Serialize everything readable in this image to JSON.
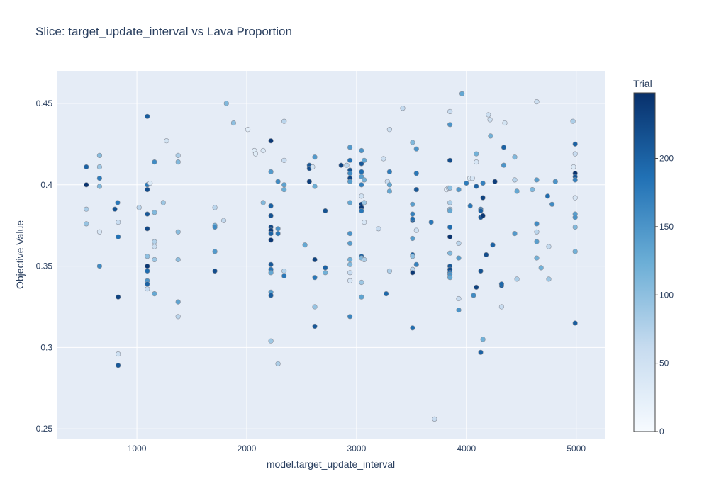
{
  "chart_data": {
    "type": "scatter",
    "title": "Slice: target_update_interval vs Lava Proportion",
    "xlabel": "model.target_update_interval",
    "ylabel": "Objective Value",
    "xlim": [
      270,
      5260
    ],
    "ylim": [
      0.244,
      0.47
    ],
    "x_ticks": [
      1000,
      2000,
      3000,
      4000,
      5000
    ],
    "x_tick_labels": [
      "1000",
      "2000",
      "3000",
      "4000",
      "5000"
    ],
    "y_ticks": [
      0.25,
      0.3,
      0.35,
      0.4,
      0.45
    ],
    "y_tick_labels": [
      "0.25",
      "0.3",
      "0.35",
      "0.4",
      "0.45"
    ],
    "grid": true,
    "colorbar": {
      "title": "Trial",
      "range": [
        0,
        248
      ],
      "ticks": [
        0,
        50,
        100,
        150,
        200
      ],
      "tick_labels": [
        "0",
        "50",
        "100",
        "150",
        "200"
      ],
      "colors": [
        "#f7fbff",
        "#c6dbef",
        "#6baed6",
        "#2171b5",
        "#08306b"
      ]
    },
    "points": [
      {
        "x": 540,
        "y": 0.4,
        "trial": 245
      },
      {
        "x": 540,
        "y": 0.411,
        "trial": 200
      },
      {
        "x": 540,
        "y": 0.385,
        "trial": 80
      },
      {
        "x": 540,
        "y": 0.376,
        "trial": 95
      },
      {
        "x": 660,
        "y": 0.418,
        "trial": 105
      },
      {
        "x": 660,
        "y": 0.411,
        "trial": 90
      },
      {
        "x": 660,
        "y": 0.404,
        "trial": 175
      },
      {
        "x": 660,
        "y": 0.399,
        "trial": 110
      },
      {
        "x": 660,
        "y": 0.371,
        "trial": 40
      },
      {
        "x": 660,
        "y": 0.35,
        "trial": 160
      },
      {
        "x": 800,
        "y": 0.385,
        "trial": 215
      },
      {
        "x": 825,
        "y": 0.389,
        "trial": 180
      },
      {
        "x": 830,
        "y": 0.377,
        "trial": 60
      },
      {
        "x": 830,
        "y": 0.368,
        "trial": 185
      },
      {
        "x": 830,
        "y": 0.331,
        "trial": 230
      },
      {
        "x": 830,
        "y": 0.296,
        "trial": 55
      },
      {
        "x": 830,
        "y": 0.289,
        "trial": 210
      },
      {
        "x": 1020,
        "y": 0.386,
        "trial": 70
      },
      {
        "x": 1095,
        "y": 0.442,
        "trial": 205
      },
      {
        "x": 1095,
        "y": 0.4,
        "trial": 175
      },
      {
        "x": 1095,
        "y": 0.397,
        "trial": 220
      },
      {
        "x": 1095,
        "y": 0.382,
        "trial": 210
      },
      {
        "x": 1095,
        "y": 0.373,
        "trial": 225
      },
      {
        "x": 1095,
        "y": 0.356,
        "trial": 100
      },
      {
        "x": 1095,
        "y": 0.35,
        "trial": 240
      },
      {
        "x": 1095,
        "y": 0.347,
        "trial": 190
      },
      {
        "x": 1095,
        "y": 0.341,
        "trial": 150
      },
      {
        "x": 1095,
        "y": 0.339,
        "trial": 200
      },
      {
        "x": 1095,
        "y": 0.336,
        "trial": 60
      },
      {
        "x": 1120,
        "y": 0.401,
        "trial": 35
      },
      {
        "x": 1160,
        "y": 0.414,
        "trial": 160
      },
      {
        "x": 1160,
        "y": 0.383,
        "trial": 110
      },
      {
        "x": 1160,
        "y": 0.365,
        "trial": 75
      },
      {
        "x": 1160,
        "y": 0.362,
        "trial": 55
      },
      {
        "x": 1160,
        "y": 0.354,
        "trial": 90
      },
      {
        "x": 1160,
        "y": 0.333,
        "trial": 130
      },
      {
        "x": 1240,
        "y": 0.389,
        "trial": 90
      },
      {
        "x": 1270,
        "y": 0.427,
        "trial": 45
      },
      {
        "x": 1375,
        "y": 0.418,
        "trial": 80
      },
      {
        "x": 1375,
        "y": 0.414,
        "trial": 110
      },
      {
        "x": 1375,
        "y": 0.371,
        "trial": 105
      },
      {
        "x": 1375,
        "y": 0.354,
        "trial": 100
      },
      {
        "x": 1375,
        "y": 0.328,
        "trial": 135
      },
      {
        "x": 1375,
        "y": 0.319,
        "trial": 70
      },
      {
        "x": 1710,
        "y": 0.386,
        "trial": 70
      },
      {
        "x": 1710,
        "y": 0.375,
        "trial": 120
      },
      {
        "x": 1710,
        "y": 0.374,
        "trial": 160
      },
      {
        "x": 1710,
        "y": 0.359,
        "trial": 145
      },
      {
        "x": 1710,
        "y": 0.347,
        "trial": 220
      },
      {
        "x": 1790,
        "y": 0.378,
        "trial": 65
      },
      {
        "x": 1815,
        "y": 0.45,
        "trial": 110
      },
      {
        "x": 1880,
        "y": 0.438,
        "trial": 100
      },
      {
        "x": 2010,
        "y": 0.434,
        "trial": 25
      },
      {
        "x": 2070,
        "y": 0.421,
        "trial": 30
      },
      {
        "x": 2080,
        "y": 0.419,
        "trial": 30
      },
      {
        "x": 2150,
        "y": 0.421,
        "trial": 35
      },
      {
        "x": 2150,
        "y": 0.389,
        "trial": 110
      },
      {
        "x": 2220,
        "y": 0.427,
        "trial": 240
      },
      {
        "x": 2220,
        "y": 0.408,
        "trial": 145
      },
      {
        "x": 2220,
        "y": 0.387,
        "trial": 200
      },
      {
        "x": 2220,
        "y": 0.381,
        "trial": 215
      },
      {
        "x": 2220,
        "y": 0.374,
        "trial": 225
      },
      {
        "x": 2220,
        "y": 0.372,
        "trial": 235
      },
      {
        "x": 2220,
        "y": 0.37,
        "trial": 200
      },
      {
        "x": 2220,
        "y": 0.366,
        "trial": 240
      },
      {
        "x": 2220,
        "y": 0.351,
        "trial": 210
      },
      {
        "x": 2220,
        "y": 0.348,
        "trial": 180
      },
      {
        "x": 2220,
        "y": 0.346,
        "trial": 130
      },
      {
        "x": 2220,
        "y": 0.334,
        "trial": 140
      },
      {
        "x": 2220,
        "y": 0.332,
        "trial": 205
      },
      {
        "x": 2220,
        "y": 0.304,
        "trial": 90
      },
      {
        "x": 2285,
        "y": 0.402,
        "trial": 160
      },
      {
        "x": 2285,
        "y": 0.373,
        "trial": 150
      },
      {
        "x": 2285,
        "y": 0.37,
        "trial": 180
      },
      {
        "x": 2285,
        "y": 0.29,
        "trial": 80
      },
      {
        "x": 2340,
        "y": 0.439,
        "trial": 70
      },
      {
        "x": 2340,
        "y": 0.415,
        "trial": 60
      },
      {
        "x": 2340,
        "y": 0.4,
        "trial": 135
      },
      {
        "x": 2340,
        "y": 0.397,
        "trial": 125
      },
      {
        "x": 2340,
        "y": 0.347,
        "trial": 75
      },
      {
        "x": 2340,
        "y": 0.344,
        "trial": 180
      },
      {
        "x": 2530,
        "y": 0.363,
        "trial": 130
      },
      {
        "x": 2570,
        "y": 0.412,
        "trial": 210
      },
      {
        "x": 2570,
        "y": 0.41,
        "trial": 220
      },
      {
        "x": 2570,
        "y": 0.402,
        "trial": 235
      },
      {
        "x": 2600,
        "y": 0.411,
        "trial": 45
      },
      {
        "x": 2620,
        "y": 0.417,
        "trial": 145
      },
      {
        "x": 2620,
        "y": 0.399,
        "trial": 125
      },
      {
        "x": 2620,
        "y": 0.354,
        "trial": 230
      },
      {
        "x": 2620,
        "y": 0.343,
        "trial": 180
      },
      {
        "x": 2620,
        "y": 0.325,
        "trial": 95
      },
      {
        "x": 2620,
        "y": 0.313,
        "trial": 210
      },
      {
        "x": 2715,
        "y": 0.384,
        "trial": 215
      },
      {
        "x": 2715,
        "y": 0.349,
        "trial": 200
      },
      {
        "x": 2715,
        "y": 0.346,
        "trial": 120
      },
      {
        "x": 2860,
        "y": 0.412,
        "trial": 230
      },
      {
        "x": 2910,
        "y": 0.412,
        "trial": 70
      },
      {
        "x": 2940,
        "y": 0.423,
        "trial": 145
      },
      {
        "x": 2940,
        "y": 0.415,
        "trial": 185
      },
      {
        "x": 2940,
        "y": 0.409,
        "trial": 215
      },
      {
        "x": 2940,
        "y": 0.404,
        "trial": 225
      },
      {
        "x": 2940,
        "y": 0.407,
        "trial": 160
      },
      {
        "x": 2940,
        "y": 0.402,
        "trial": 140
      },
      {
        "x": 2940,
        "y": 0.389,
        "trial": 130
      },
      {
        "x": 2940,
        "y": 0.37,
        "trial": 150
      },
      {
        "x": 2940,
        "y": 0.364,
        "trial": 140
      },
      {
        "x": 2940,
        "y": 0.354,
        "trial": 120
      },
      {
        "x": 2940,
        "y": 0.351,
        "trial": 110
      },
      {
        "x": 2940,
        "y": 0.346,
        "trial": 60
      },
      {
        "x": 2940,
        "y": 0.341,
        "trial": 40
      },
      {
        "x": 2940,
        "y": 0.319,
        "trial": 165
      },
      {
        "x": 3045,
        "y": 0.421,
        "trial": 150
      },
      {
        "x": 3045,
        "y": 0.413,
        "trial": 210
      },
      {
        "x": 3045,
        "y": 0.408,
        "trial": 190
      },
      {
        "x": 3045,
        "y": 0.405,
        "trial": 140
      },
      {
        "x": 3045,
        "y": 0.4,
        "trial": 170
      },
      {
        "x": 3045,
        "y": 0.393,
        "trial": 50
      },
      {
        "x": 3045,
        "y": 0.388,
        "trial": 230
      },
      {
        "x": 3045,
        "y": 0.386,
        "trial": 240
      },
      {
        "x": 3045,
        "y": 0.384,
        "trial": 180
      },
      {
        "x": 3045,
        "y": 0.356,
        "trial": 200
      },
      {
        "x": 3045,
        "y": 0.355,
        "trial": 110
      },
      {
        "x": 3045,
        "y": 0.34,
        "trial": 90
      },
      {
        "x": 3045,
        "y": 0.331,
        "trial": 135
      },
      {
        "x": 3070,
        "y": 0.415,
        "trial": 130
      },
      {
        "x": 3070,
        "y": 0.403,
        "trial": 120
      },
      {
        "x": 3070,
        "y": 0.389,
        "trial": 90
      },
      {
        "x": 3070,
        "y": 0.377,
        "trial": 40
      },
      {
        "x": 3070,
        "y": 0.354,
        "trial": 80
      },
      {
        "x": 3200,
        "y": 0.373,
        "trial": 60
      },
      {
        "x": 3245,
        "y": 0.416,
        "trial": 55
      },
      {
        "x": 3270,
        "y": 0.333,
        "trial": 195
      },
      {
        "x": 3280,
        "y": 0.402,
        "trial": 60
      },
      {
        "x": 3300,
        "y": 0.434,
        "trial": 55
      },
      {
        "x": 3300,
        "y": 0.408,
        "trial": 175
      },
      {
        "x": 3300,
        "y": 0.4,
        "trial": 130
      },
      {
        "x": 3300,
        "y": 0.396,
        "trial": 130
      },
      {
        "x": 3300,
        "y": 0.347,
        "trial": 80
      },
      {
        "x": 3420,
        "y": 0.447,
        "trial": 65
      },
      {
        "x": 3510,
        "y": 0.426,
        "trial": 110
      },
      {
        "x": 3510,
        "y": 0.388,
        "trial": 140
      },
      {
        "x": 3510,
        "y": 0.382,
        "trial": 170
      },
      {
        "x": 3510,
        "y": 0.378,
        "trial": 210
      },
      {
        "x": 3510,
        "y": 0.379,
        "trial": 190
      },
      {
        "x": 3510,
        "y": 0.367,
        "trial": 140
      },
      {
        "x": 3510,
        "y": 0.357,
        "trial": 200
      },
      {
        "x": 3510,
        "y": 0.356,
        "trial": 100
      },
      {
        "x": 3510,
        "y": 0.348,
        "trial": 70
      },
      {
        "x": 3510,
        "y": 0.346,
        "trial": 240
      },
      {
        "x": 3510,
        "y": 0.312,
        "trial": 190
      },
      {
        "x": 3545,
        "y": 0.422,
        "trial": 150
      },
      {
        "x": 3545,
        "y": 0.407,
        "trial": 180
      },
      {
        "x": 3545,
        "y": 0.397,
        "trial": 210
      },
      {
        "x": 3545,
        "y": 0.372,
        "trial": 50
      },
      {
        "x": 3545,
        "y": 0.351,
        "trial": 170
      },
      {
        "x": 3680,
        "y": 0.377,
        "trial": 180
      },
      {
        "x": 3710,
        "y": 0.256,
        "trial": 60
      },
      {
        "x": 3820,
        "y": 0.397,
        "trial": 25
      },
      {
        "x": 3835,
        "y": 0.398,
        "trial": 50
      },
      {
        "x": 3850,
        "y": 0.445,
        "trial": 60
      },
      {
        "x": 3850,
        "y": 0.437,
        "trial": 150
      },
      {
        "x": 3850,
        "y": 0.415,
        "trial": 220
      },
      {
        "x": 3850,
        "y": 0.398,
        "trial": 100
      },
      {
        "x": 3850,
        "y": 0.389,
        "trial": 80
      },
      {
        "x": 3850,
        "y": 0.385,
        "trial": 90
      },
      {
        "x": 3850,
        "y": 0.384,
        "trial": 130
      },
      {
        "x": 3850,
        "y": 0.374,
        "trial": 190
      },
      {
        "x": 3850,
        "y": 0.368,
        "trial": 245
      },
      {
        "x": 3850,
        "y": 0.358,
        "trial": 110
      },
      {
        "x": 3850,
        "y": 0.35,
        "trial": 210
      },
      {
        "x": 3850,
        "y": 0.348,
        "trial": 220
      },
      {
        "x": 3850,
        "y": 0.346,
        "trial": 180
      },
      {
        "x": 3850,
        "y": 0.345,
        "trial": 150
      },
      {
        "x": 3850,
        "y": 0.343,
        "trial": 130
      },
      {
        "x": 3930,
        "y": 0.397,
        "trial": 145
      },
      {
        "x": 3930,
        "y": 0.364,
        "trial": 70
      },
      {
        "x": 3930,
        "y": 0.355,
        "trial": 140
      },
      {
        "x": 3930,
        "y": 0.33,
        "trial": 60
      },
      {
        "x": 3930,
        "y": 0.323,
        "trial": 150
      },
      {
        "x": 3960,
        "y": 0.456,
        "trial": 130
      },
      {
        "x": 4000,
        "y": 0.401,
        "trial": 175
      },
      {
        "x": 4030,
        "y": 0.404,
        "trial": 30
      },
      {
        "x": 4035,
        "y": 0.387,
        "trial": 180
      },
      {
        "x": 4055,
        "y": 0.404,
        "trial": 40
      },
      {
        "x": 4065,
        "y": 0.332,
        "trial": 160
      },
      {
        "x": 4090,
        "y": 0.419,
        "trial": 120
      },
      {
        "x": 4090,
        "y": 0.414,
        "trial": 40
      },
      {
        "x": 4090,
        "y": 0.399,
        "trial": 200
      },
      {
        "x": 4090,
        "y": 0.337,
        "trial": 230
      },
      {
        "x": 4130,
        "y": 0.385,
        "trial": 180
      },
      {
        "x": 4130,
        "y": 0.384,
        "trial": 200
      },
      {
        "x": 4130,
        "y": 0.38,
        "trial": 210
      },
      {
        "x": 4130,
        "y": 0.347,
        "trial": 215
      },
      {
        "x": 4130,
        "y": 0.297,
        "trial": 200
      },
      {
        "x": 4150,
        "y": 0.401,
        "trial": 170
      },
      {
        "x": 4150,
        "y": 0.392,
        "trial": 230
      },
      {
        "x": 4150,
        "y": 0.381,
        "trial": 240
      },
      {
        "x": 4150,
        "y": 0.305,
        "trial": 120
      },
      {
        "x": 4180,
        "y": 0.357,
        "trial": 220
      },
      {
        "x": 4200,
        "y": 0.443,
        "trial": 55
      },
      {
        "x": 4215,
        "y": 0.44,
        "trial": 50
      },
      {
        "x": 4220,
        "y": 0.43,
        "trial": 120
      },
      {
        "x": 4240,
        "y": 0.363,
        "trial": 200
      },
      {
        "x": 4260,
        "y": 0.402,
        "trial": 235
      },
      {
        "x": 4320,
        "y": 0.338,
        "trial": 205
      },
      {
        "x": 4320,
        "y": 0.339,
        "trial": 195
      },
      {
        "x": 4320,
        "y": 0.325,
        "trial": 60
      },
      {
        "x": 4340,
        "y": 0.423,
        "trial": 200
      },
      {
        "x": 4340,
        "y": 0.412,
        "trial": 150
      },
      {
        "x": 4350,
        "y": 0.438,
        "trial": 45
      },
      {
        "x": 4440,
        "y": 0.417,
        "trial": 110
      },
      {
        "x": 4440,
        "y": 0.403,
        "trial": 70
      },
      {
        "x": 4440,
        "y": 0.37,
        "trial": 145
      },
      {
        "x": 4460,
        "y": 0.396,
        "trial": 130
      },
      {
        "x": 4460,
        "y": 0.342,
        "trial": 80
      },
      {
        "x": 4600,
        "y": 0.397,
        "trial": 110
      },
      {
        "x": 4640,
        "y": 0.451,
        "trial": 55
      },
      {
        "x": 4640,
        "y": 0.403,
        "trial": 140
      },
      {
        "x": 4640,
        "y": 0.376,
        "trial": 160
      },
      {
        "x": 4640,
        "y": 0.371,
        "trial": 70
      },
      {
        "x": 4640,
        "y": 0.365,
        "trial": 140
      },
      {
        "x": 4640,
        "y": 0.355,
        "trial": 120
      },
      {
        "x": 4680,
        "y": 0.349,
        "trial": 120
      },
      {
        "x": 4740,
        "y": 0.393,
        "trial": 190
      },
      {
        "x": 4750,
        "y": 0.362,
        "trial": 65
      },
      {
        "x": 4750,
        "y": 0.342,
        "trial": 90
      },
      {
        "x": 4780,
        "y": 0.388,
        "trial": 160
      },
      {
        "x": 4810,
        "y": 0.402,
        "trial": 150
      },
      {
        "x": 4970,
        "y": 0.439,
        "trial": 80
      },
      {
        "x": 4975,
        "y": 0.411,
        "trial": 35
      },
      {
        "x": 4990,
        "y": 0.425,
        "trial": 200
      },
      {
        "x": 4990,
        "y": 0.419,
        "trial": 60
      },
      {
        "x": 4990,
        "y": 0.407,
        "trial": 245
      },
      {
        "x": 4990,
        "y": 0.405,
        "trial": 210
      },
      {
        "x": 4990,
        "y": 0.403,
        "trial": 170
      },
      {
        "x": 4990,
        "y": 0.392,
        "trial": 40
      },
      {
        "x": 4990,
        "y": 0.382,
        "trial": 140
      },
      {
        "x": 4990,
        "y": 0.38,
        "trial": 150
      },
      {
        "x": 4990,
        "y": 0.374,
        "trial": 110
      },
      {
        "x": 4990,
        "y": 0.359,
        "trial": 120
      },
      {
        "x": 4990,
        "y": 0.315,
        "trial": 205
      }
    ]
  }
}
